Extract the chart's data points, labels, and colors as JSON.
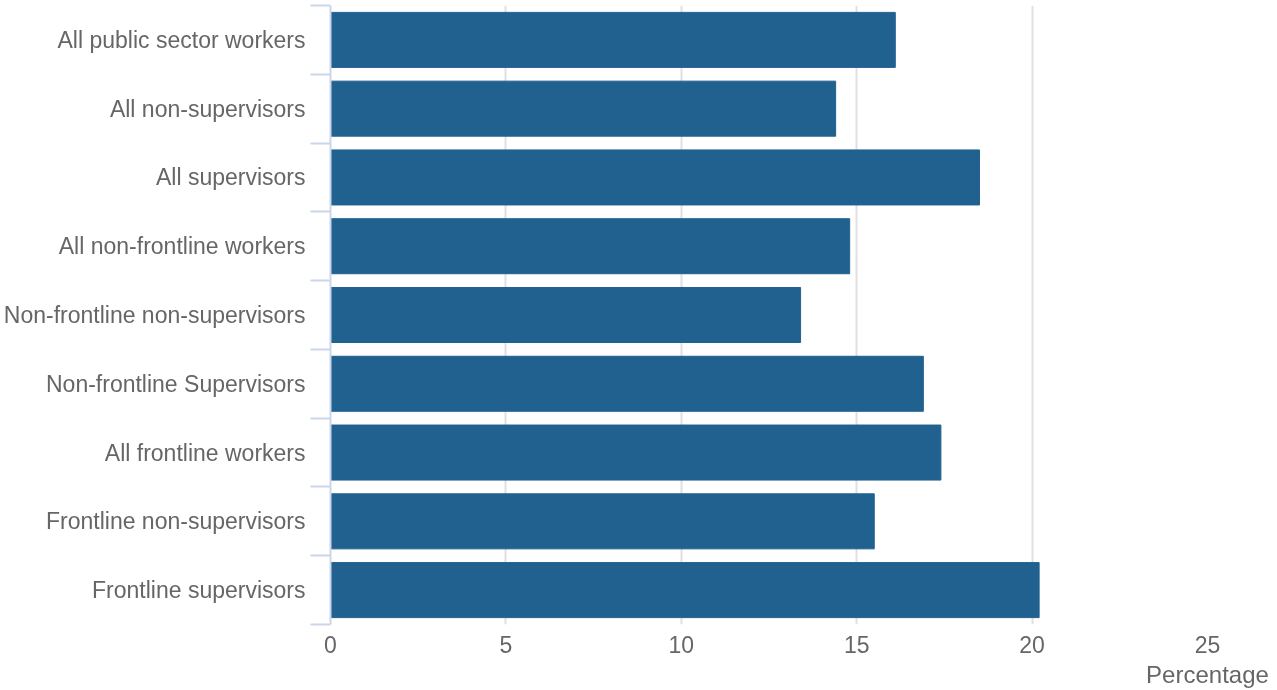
{
  "chart_data": {
    "type": "bar",
    "orientation": "horizontal",
    "xlabel": "Percentage",
    "categories": [
      "All public sector workers",
      "All non-supervisors",
      "All supervisors",
      "All non-frontline workers",
      "Non-frontline non-supervisors",
      "Non-frontline Supervisors",
      "All frontline workers",
      "Frontline non-supervisors",
      "Frontline supervisors"
    ],
    "values": [
      16.1,
      14.4,
      18.5,
      14.8,
      13.4,
      16.9,
      17.4,
      15.5,
      20.2
    ],
    "color": "#21618f",
    "xlim": [
      0,
      25
    ],
    "xticks": [
      0,
      5,
      10,
      15,
      20,
      25
    ],
    "grid": "x"
  }
}
